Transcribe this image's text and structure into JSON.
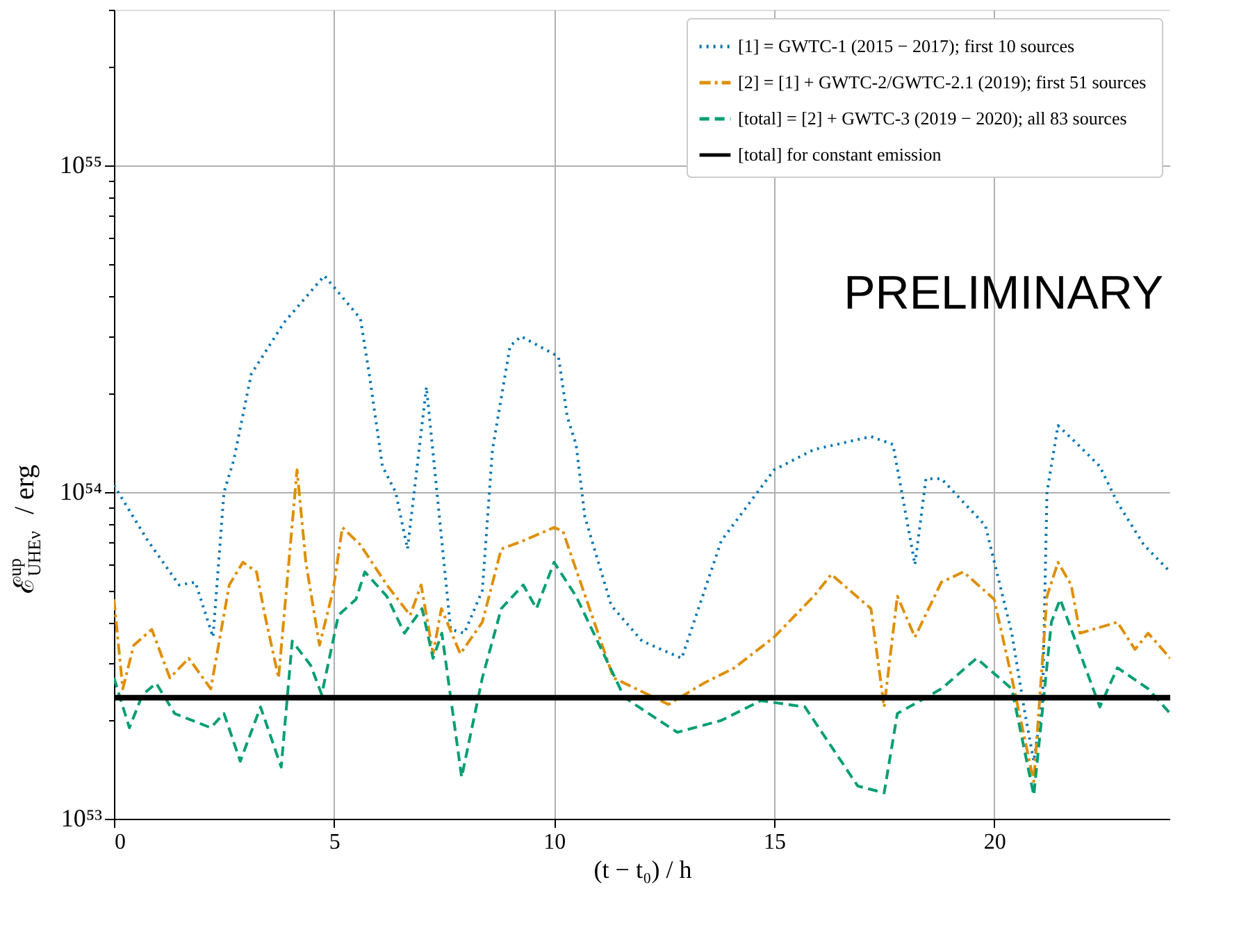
{
  "chart_data": {
    "type": "line",
    "xlabel": "(t − t₀) / h",
    "ylabel": "ℰ$^{up}$$_{UHEν}$ / erg",
    "log": "y",
    "grid": true,
    "legend": "top right",
    "xlim": [
      0,
      24
    ],
    "xticks": [
      0,
      5,
      10,
      15,
      20
    ],
    "ylim": [
      1e+53,
      3e+55
    ],
    "yticks": [
      {
        "value": 1e+53,
        "label": "10⁵³"
      },
      {
        "value": 2e+53,
        "label": null
      },
      {
        "value": 3e+53,
        "label": null
      },
      {
        "value": 4e+53,
        "label": null
      },
      {
        "value": 5e+53,
        "label": null
      },
      {
        "value": 6e+53,
        "label": null
      },
      {
        "value": 7e+53,
        "label": null
      },
      {
        "value": 8e+53,
        "label": null
      },
      {
        "value": 9e+53,
        "label": null
      },
      {
        "value": 1e+54,
        "label": "10⁵⁴"
      },
      {
        "value": 2e+54,
        "label": null
      },
      {
        "value": 3e+54,
        "label": null
      },
      {
        "value": 4e+54,
        "label": null
      },
      {
        "value": 5e+54,
        "label": null
      },
      {
        "value": 6e+54,
        "label": null
      },
      {
        "value": 7e+54,
        "label": null
      },
      {
        "value": 8e+54,
        "label": null
      },
      {
        "value": 9e+54,
        "label": null
      },
      {
        "value": 1e+55,
        "label": "10⁵⁵"
      },
      {
        "value": 2e+55,
        "label": null
      },
      {
        "value": 3e+55,
        "label": null
      }
    ],
    "annotations": [
      "PRELIMINARY"
    ],
    "series": [
      {
        "name": "[1] = GWTC-1 (2015 − 2017);  first 10 sources",
        "color": "#0173b2",
        "line_style": "dotted",
        "x": [
          0,
          0.77,
          1.48,
          1.85,
          2.25,
          2.5,
          2.72,
          3.12,
          3.86,
          4.78,
          5.6,
          5.8,
          6.1,
          6.4,
          6.67,
          7.1,
          7.65,
          7.96,
          8.37,
          8.6,
          9.0,
          9.25,
          10.1,
          10.3,
          10.5,
          10.7,
          11.3,
          12.0,
          12.9,
          13.8,
          15.0,
          15.9,
          17.2,
          17.7,
          17.9,
          18.2,
          18.45,
          18.8,
          19.8,
          20.4,
          20.7,
          20.9,
          21.1,
          21.2,
          21.45,
          21.9,
          22.4,
          22.8,
          23.4,
          24
        ],
        "values": [
          1.05e+54,
          7.1e+53,
          5.2e+53,
          5.3e+53,
          3.6e+53,
          1e+54,
          1.25e+54,
          2.3e+54,
          3.3e+54,
          4.6e+54,
          3.4e+54,
          2.3e+54,
          1.2e+54,
          1e+54,
          6.7e+53,
          2.1e+54,
          3.8e+53,
          3.7e+53,
          5e+53,
          1.35e+54,
          2.8e+54,
          3e+54,
          2.6e+54,
          1.7e+54,
          1.4e+54,
          8.4e+53,
          4.5e+53,
          3.5e+53,
          3.1e+53,
          7.1e+53,
          1.17e+54,
          1.35e+54,
          1.48e+54,
          1.4e+54,
          1e+54,
          6e+53,
          1.1e+54,
          1.1e+54,
          7.9e+53,
          3.7e+53,
          2.1e+53,
          1.5e+53,
          2.3e+53,
          1e+54,
          1.6e+54,
          1.4e+54,
          1.2e+54,
          9.3e+53,
          6.9e+53,
          5.7e+53
        ]
      },
      {
        "name": "[2] = [1] + GWTC-2/GWTC-2.1 (2019);  first 51 sources",
        "color": "#de8f05",
        "line_style": "dashdot",
        "x": [
          0,
          0.2,
          0.45,
          0.86,
          1.27,
          1.7,
          2.2,
          2.62,
          2.93,
          3.24,
          3.43,
          3.74,
          4.16,
          4.36,
          4.67,
          4.98,
          5.19,
          5.6,
          6.2,
          6.73,
          6.98,
          7.25,
          7.44,
          7.87,
          8.37,
          8.8,
          9.3,
          10.0,
          10.2,
          10.6,
          11.35,
          12.6,
          13.4,
          14.1,
          15.0,
          15.9,
          16.3,
          17.2,
          17.5,
          17.8,
          18.2,
          18.8,
          19.3,
          20.0,
          20.4,
          20.9,
          21.2,
          21.45,
          21.75,
          21.95,
          22.8,
          23.2,
          23.5,
          24
        ],
        "values": [
          4.7e+53,
          2.5e+53,
          3.4e+53,
          3.8e+53,
          2.7e+53,
          3.1e+53,
          2.5e+53,
          5.2e+53,
          6.1e+53,
          5.7e+53,
          4.2e+53,
          2.7e+53,
          1.17e+54,
          6.1e+53,
          3.4e+53,
          5e+53,
          7.8e+53,
          6.9e+53,
          5.2e+53,
          4.2e+53,
          5.2e+53,
          3.2e+53,
          4.4e+53,
          3.2e+53,
          4e+53,
          6.7e+53,
          7.1e+53,
          7.8e+53,
          7.6e+53,
          5.3e+53,
          2.7e+53,
          2.24e+53,
          2.6e+53,
          2.9e+53,
          3.6e+53,
          4.8e+53,
          5.6e+53,
          4.4e+53,
          2.2e+53,
          4.8e+53,
          3.6e+53,
          5.3e+53,
          5.7e+53,
          4.7e+53,
          2.7e+53,
          1.3e+53,
          4.8e+53,
          6.1e+53,
          5.2e+53,
          3.7e+53,
          4e+53,
          3.3e+53,
          3.7e+53,
          3.1e+53
        ]
      },
      {
        "name": "[total] = [2] + GWTC-3 (2019 − 2020);  all 83 sources",
        "color": "#029e73",
        "line_style": "dashed",
        "x": [
          0,
          0.35,
          0.65,
          0.96,
          1.38,
          2.2,
          2.5,
          2.87,
          3.33,
          3.8,
          4.05,
          4.47,
          4.72,
          5.1,
          5.5,
          5.7,
          6.2,
          6.6,
          7.0,
          7.25,
          7.45,
          7.9,
          8.37,
          8.8,
          9.3,
          9.6,
          10.0,
          10.5,
          11.6,
          12.8,
          13.8,
          14.7,
          15.7,
          16.9,
          17.5,
          17.8,
          18.8,
          19.6,
          20.4,
          20.9,
          21.3,
          21.5,
          22.4,
          22.8,
          23.5,
          24
        ],
        "values": [
          2.7e+53,
          1.9e+53,
          2.4e+53,
          2.6e+53,
          2.1e+53,
          1.9e+53,
          2.1e+53,
          1.5e+53,
          2.2e+53,
          1.44e+53,
          3.5e+53,
          2.95e+53,
          2.4e+53,
          4.2e+53,
          4.7e+53,
          5.7e+53,
          4.8e+53,
          3.7e+53,
          4.4e+53,
          3.1e+53,
          3.7e+53,
          1.34e+53,
          2.7e+53,
          4.4e+53,
          5.2e+53,
          4.4e+53,
          6.1e+53,
          4.8e+53,
          2.35e+53,
          1.84e+53,
          2e+53,
          2.3e+53,
          2.2e+53,
          1.26e+53,
          1.2e+53,
          2.1e+53,
          2.5e+53,
          3.1e+53,
          2.5e+53,
          1.18e+53,
          4e+53,
          4.7e+53,
          2.2e+53,
          2.9e+53,
          2.5e+53,
          2.1e+53
        ]
      },
      {
        "name": "[total] for constant emission",
        "color": "#000000",
        "line_style": "solid",
        "x": [
          0,
          24
        ],
        "values": [
          2.35e+53,
          2.35e+53
        ]
      }
    ]
  }
}
